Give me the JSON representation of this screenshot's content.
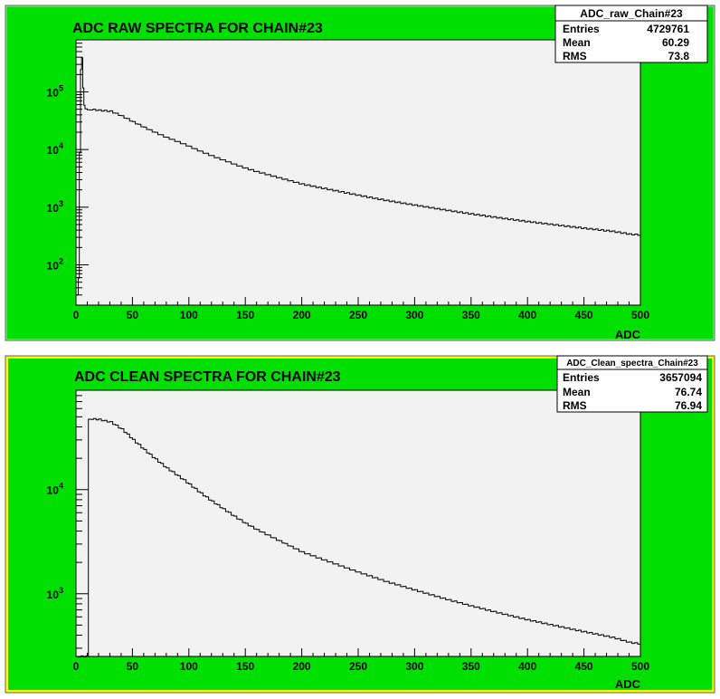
{
  "chart_data": [
    {
      "type": "histogram",
      "title": "ADC RAW SPECTRA FOR CHAIN#23",
      "xlabel": "ADC",
      "ylabel": "",
      "xlim": [
        0,
        500
      ],
      "ylim": [
        20,
        800000
      ],
      "yscale": "log",
      "grid": false,
      "xticks": [
        0,
        50,
        100,
        150,
        200,
        250,
        300,
        350,
        400,
        450,
        500
      ],
      "yticks": [
        {
          "value": 100,
          "label": "10",
          "exp": "2"
        },
        {
          "value": 1000,
          "label": "10",
          "exp": "3"
        },
        {
          "value": 10000,
          "label": "10",
          "exp": "4"
        },
        {
          "value": 100000,
          "label": "10",
          "exp": "5"
        }
      ],
      "stats": {
        "name": "ADC_raw_Chain#23",
        "rows": [
          {
            "label": "Entries",
            "value": "4729761"
          },
          {
            "label": "Mean",
            "value": "60.29"
          },
          {
            "label": "RMS",
            "value": "73.8"
          }
        ]
      },
      "points": [
        [
          0,
          30
        ],
        [
          2,
          60
        ],
        [
          3,
          9000
        ],
        [
          4,
          250000
        ],
        [
          5,
          400000
        ],
        [
          6,
          120000
        ],
        [
          7,
          60000
        ],
        [
          8,
          52000
        ],
        [
          10,
          50000
        ],
        [
          20,
          48000
        ],
        [
          30,
          46000
        ],
        [
          40,
          38000
        ],
        [
          50,
          30000
        ],
        [
          60,
          24000
        ],
        [
          70,
          19500
        ],
        [
          80,
          16000
        ],
        [
          90,
          13500
        ],
        [
          100,
          11200
        ],
        [
          110,
          9200
        ],
        [
          120,
          7700
        ],
        [
          130,
          6500
        ],
        [
          140,
          5500
        ],
        [
          150,
          4700
        ],
        [
          160,
          4100
        ],
        [
          175,
          3400
        ],
        [
          200,
          2500
        ],
        [
          225,
          2000
        ],
        [
          250,
          1600
        ],
        [
          275,
          1300
        ],
        [
          300,
          1080
        ],
        [
          325,
          900
        ],
        [
          350,
          760
        ],
        [
          375,
          650
        ],
        [
          400,
          560
        ],
        [
          425,
          490
        ],
        [
          450,
          430
        ],
        [
          475,
          380
        ],
        [
          490,
          340
        ],
        [
          500,
          330
        ]
      ]
    },
    {
      "type": "histogram",
      "title": "ADC CLEAN SPECTRA FOR CHAIN#23",
      "xlabel": "ADC",
      "ylabel": "",
      "xlim": [
        0,
        500
      ],
      "ylim": [
        250,
        90000
      ],
      "yscale": "log",
      "grid": false,
      "xticks": [
        0,
        50,
        100,
        150,
        200,
        250,
        300,
        350,
        400,
        450,
        500
      ],
      "yticks": [
        {
          "value": 1000,
          "label": "10",
          "exp": "3"
        },
        {
          "value": 10000,
          "label": "10",
          "exp": "4"
        }
      ],
      "stats": {
        "name": "ADC_Clean_spectra_Chain#23",
        "rows": [
          {
            "label": "Entries",
            "value": "3657094"
          },
          {
            "label": "Mean",
            "value": "76.74"
          },
          {
            "label": "RMS",
            "value": "76.94"
          }
        ]
      },
      "points": [
        [
          0,
          250
        ],
        [
          11,
          250
        ],
        [
          11,
          48000
        ],
        [
          20,
          47000
        ],
        [
          30,
          44500
        ],
        [
          40,
          38000
        ],
        [
          50,
          30000
        ],
        [
          60,
          24000
        ],
        [
          70,
          19500
        ],
        [
          80,
          16000
        ],
        [
          90,
          13500
        ],
        [
          100,
          11200
        ],
        [
          110,
          9200
        ],
        [
          120,
          7700
        ],
        [
          130,
          6500
        ],
        [
          140,
          5500
        ],
        [
          150,
          4700
        ],
        [
          160,
          4100
        ],
        [
          175,
          3400
        ],
        [
          200,
          2500
        ],
        [
          225,
          2000
        ],
        [
          250,
          1600
        ],
        [
          275,
          1300
        ],
        [
          300,
          1080
        ],
        [
          325,
          900
        ],
        [
          350,
          760
        ],
        [
          375,
          650
        ],
        [
          400,
          560
        ],
        [
          425,
          490
        ],
        [
          450,
          430
        ],
        [
          475,
          380
        ],
        [
          490,
          340
        ],
        [
          500,
          330
        ]
      ]
    }
  ]
}
